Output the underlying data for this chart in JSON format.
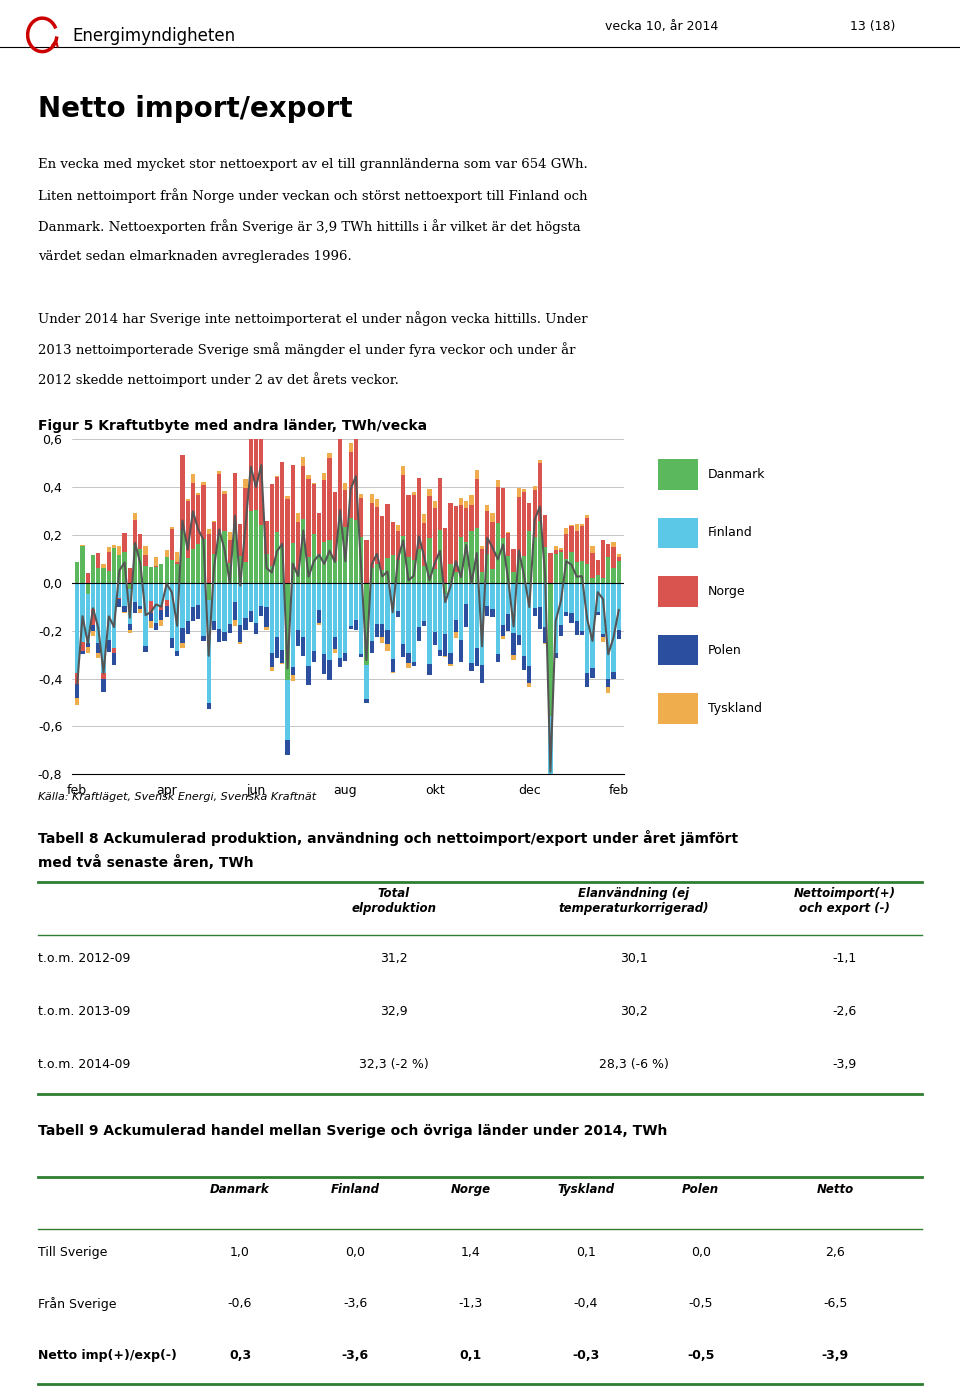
{
  "page_header_right": "vecka 10, år 2014",
  "page_number": "13 (18)",
  "section_title": "Netto import/export",
  "body_text_lines": [
    "En vecka med mycket stor nettoexport av el till grannländerna som var 654 GWh.",
    "Liten nettoimport från Norge under veckan och störst nettoexport till Finland och",
    "Danmark. Nettoexporten från Sverige är 3,9 TWh hittills i år vilket är det högsta",
    "värdet sedan elmarknaden avreglerades 1996.",
    "",
    "Under 2014 har Sverige inte nettoimporterat el under någon vecka hittills. Under",
    "2013 nettoimporterade Sverige små mängder el under fyra veckor och under år",
    "2012 skedde nettoimport under 2 av det årets veckor."
  ],
  "figure_title": "Figur 5 Kraftutbyte med andra länder, TWh/vecka",
  "x_labels": [
    "feb",
    "apr",
    "jun",
    "aug",
    "okt",
    "dec",
    "feb"
  ],
  "y_min": -0.8,
  "y_max": 0.6,
  "legend_items": [
    "Danmark",
    "Finland",
    "Norge",
    "Polen",
    "Tyskland"
  ],
  "legend_colors": [
    "#5cb85c",
    "#5bc8e8",
    "#d9534f",
    "#2b4f9e",
    "#f0ad4e"
  ],
  "source_text": "Källa: Kraftläget, Svensk Energi, Svenska Kraftnät",
  "table8_title_line1": "Tabell 8 Ackumulerad produktion, användning och nettoimport/export under året jämfört",
  "table8_title_line2": "med två senaste åren, TWh",
  "table8_col_headers": [
    "",
    "Total\nelproduktion",
    "Elanvändning (ej\ntemperaturkorrigerad)",
    "Nettoimport(+)\noch export (-)"
  ],
  "table8_rows": [
    [
      "t.o.m. 2012-09",
      "31,2",
      "30,1",
      "-1,1"
    ],
    [
      "t.o.m. 2013-09",
      "32,9",
      "30,2",
      "-2,6"
    ],
    [
      "t.o.m. 2014-09",
      "32,3 (-2 %)",
      "28,3 (-6 %)",
      "-3,9"
    ]
  ],
  "table9_title": "Tabell 9 Ackumulerad handel mellan Sverige och övriga länder under 2014, TWh",
  "table9_col_headers": [
    "",
    "Danmark",
    "Finland",
    "Norge",
    "Tyskland",
    "Polen",
    "Netto"
  ],
  "table9_rows": [
    [
      "Till Sverige",
      "1,0",
      "0,0",
      "1,4",
      "0,1",
      "0,0",
      "2,6"
    ],
    [
      "Från Sverige",
      "-0,6",
      "-3,6",
      "-1,3",
      "-0,4",
      "-0,5",
      "-6,5"
    ],
    [
      "Netto imp(+)/exp(-)",
      "0,3",
      "-3,6",
      "0,1",
      "-0,3",
      "-0,5",
      "-3,9"
    ]
  ],
  "bar_color_denmark": "#5cb85c",
  "bar_color_finland": "#5bc8e8",
  "bar_color_norge": "#d9534f",
  "bar_color_polen": "#2b4f9e",
  "bar_color_tyskland": "#f0ad4e",
  "line_color": "#555555",
  "background_color": "#ffffff",
  "table_line_color": "#2e7d32"
}
